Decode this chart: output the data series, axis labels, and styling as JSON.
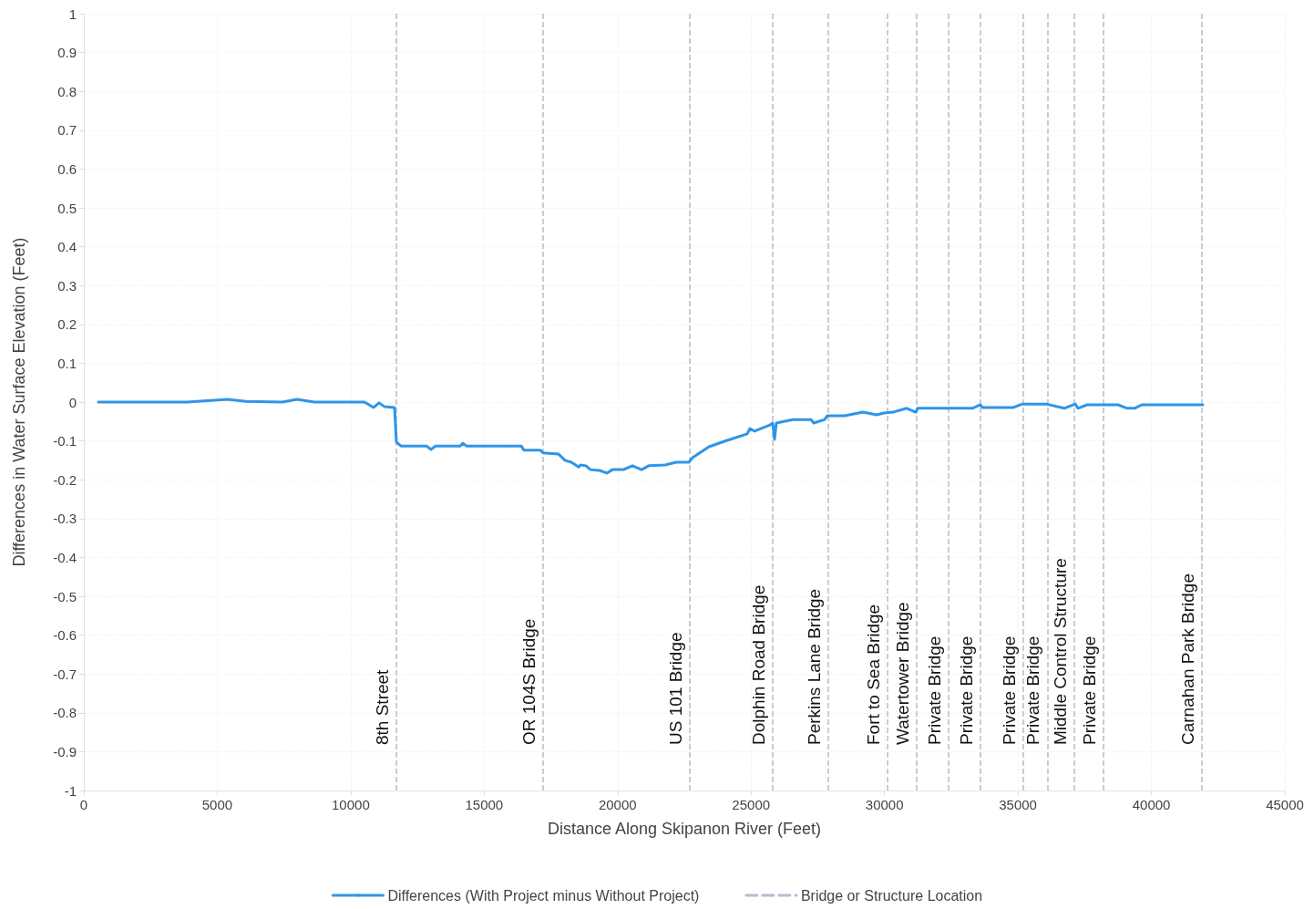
{
  "chart_data": {
    "type": "line",
    "xlabel": "Distance Along Skipanon River (Feet)",
    "ylabel": "Differences in Water Surface Elevation (Feet)",
    "xlim": [
      0,
      45000
    ],
    "xticks": [
      0,
      5000,
      10000,
      15000,
      20000,
      25000,
      30000,
      35000,
      40000,
      45000
    ],
    "ylim": [
      -1,
      1
    ],
    "yticks": [
      -1,
      -0.9,
      -0.8,
      -0.7,
      -0.6,
      -0.5,
      -0.4,
      -0.3,
      -0.2,
      -0.1,
      0,
      0.1,
      0.2,
      0.3,
      0.4,
      0.5,
      0.6,
      0.7,
      0.8,
      0.9,
      1
    ],
    "grid": true,
    "legend": "bottom",
    "marker": "none",
    "series": [
      {
        "name": "Differences (With Project minus Without Project)",
        "color": "#2e95e8",
        "line_style": "solid",
        "x": [
          546,
          3860,
          5394,
          6077,
          7443,
          7990,
          8638,
          10516,
          10857,
          11062,
          11267,
          11642,
          11711,
          11882,
          12838,
          13009,
          13180,
          14101,
          14204,
          14341,
          16389,
          16492,
          17106,
          17208,
          17789,
          18028,
          18267,
          18540,
          18608,
          18813,
          18984,
          19325,
          19598,
          19803,
          20213,
          20554,
          20895,
          21168,
          21783,
          22193,
          22671,
          22807,
          23422,
          24002,
          24856,
          24958,
          25129,
          25710,
          25811,
          25880,
          25948,
          26563,
          27246,
          27348,
          27758,
          27860,
          28509,
          29192,
          29704,
          29977,
          30318,
          30830,
          31172,
          31240,
          33289,
          33596,
          33664,
          34825,
          35166,
          36054,
          36737,
          37147,
          37249,
          37591,
          38752,
          39093,
          39366,
          39640,
          41927
        ],
        "values": [
          0,
          0,
          0.007,
          0.002,
          0,
          0.007,
          0,
          0,
          -0.014,
          -0.002,
          -0.012,
          -0.014,
          -0.103,
          -0.113,
          -0.113,
          -0.122,
          -0.113,
          -0.113,
          -0.106,
          -0.113,
          -0.113,
          -0.124,
          -0.124,
          -0.131,
          -0.134,
          -0.15,
          -0.155,
          -0.167,
          -0.162,
          -0.164,
          -0.174,
          -0.176,
          -0.183,
          -0.174,
          -0.174,
          -0.164,
          -0.174,
          -0.164,
          -0.162,
          -0.155,
          -0.155,
          -0.143,
          -0.115,
          -0.101,
          -0.082,
          -0.068,
          -0.075,
          -0.059,
          -0.054,
          -0.096,
          -0.054,
          -0.045,
          -0.045,
          -0.054,
          -0.045,
          -0.035,
          -0.035,
          -0.026,
          -0.033,
          -0.028,
          -0.026,
          -0.016,
          -0.026,
          -0.016,
          -0.016,
          -0.007,
          -0.014,
          -0.014,
          -0.005,
          -0.005,
          -0.016,
          -0.005,
          -0.016,
          -0.007,
          -0.007,
          -0.016,
          -0.016,
          -0.007,
          -0.007
        ]
      },
      {
        "name": "Bridge or Structure Location",
        "color": "#b4bdd0",
        "line_style": "dashed"
      }
    ],
    "ref_lines": [
      {
        "axis": "x",
        "value": 11700,
        "label": "8th Street",
        "color": "#b4bdd0",
        "line_style": "dashed"
      },
      {
        "axis": "x",
        "value": 17200,
        "label": "OR 104S Bridge",
        "color": "#b4bdd0",
        "line_style": "dashed"
      },
      {
        "axis": "x",
        "value": 22700,
        "label": "US 101 Bridge",
        "color": "#b4bdd0",
        "line_style": "dashed"
      },
      {
        "axis": "x",
        "value": 25800,
        "label": "Dolphin Road Bridge",
        "color": "#b4bdd0",
        "line_style": "dashed"
      },
      {
        "axis": "x",
        "value": 27900,
        "label": "Perkins Lane Bridge",
        "color": "#b4bdd0",
        "line_style": "dashed"
      },
      {
        "axis": "x",
        "value": 30100,
        "label": "Fort to Sea Bridge",
        "color": "#b4bdd0",
        "line_style": "dashed"
      },
      {
        "axis": "x",
        "value": 31200,
        "label": "Watertower Bridge",
        "color": "#b4bdd0",
        "line_style": "dashed"
      },
      {
        "axis": "x",
        "value": 32400,
        "label": "Private Bridge",
        "color": "#b4bdd0",
        "line_style": "dashed"
      },
      {
        "axis": "x",
        "value": 33600,
        "label": "Private Bridge",
        "color": "#b4bdd0",
        "line_style": "dashed"
      },
      {
        "axis": "x",
        "value": 35200,
        "label": "Private Bridge",
        "color": "#b4bdd0",
        "line_style": "dashed"
      },
      {
        "axis": "x",
        "value": 36100,
        "label": "Private Bridge",
        "color": "#b4bdd0",
        "line_style": "dashed"
      },
      {
        "axis": "x",
        "value": 37100,
        "label": "Middle Control Structure",
        "color": "#b4bdd0",
        "line_style": "dashed"
      },
      {
        "axis": "x",
        "value": 38200,
        "label": "Private Bridge",
        "color": "#b4bdd0",
        "line_style": "dashed"
      },
      {
        "axis": "x",
        "value": 41900,
        "label": "Carnahan Park Bridge",
        "color": "#b4bdd0",
        "line_style": "dashed"
      }
    ]
  }
}
